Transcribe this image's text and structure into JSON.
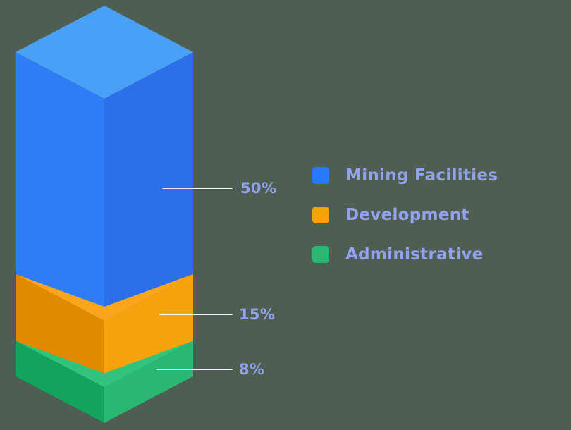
{
  "background": "#4e5e52",
  "text_color": "#93a2ee",
  "line_color": "#f2f4f6",
  "chart_data": {
    "type": "bar",
    "variant": "3d-isometric-stacked-column",
    "title": "",
    "unit": "%",
    "legend_position": "right",
    "segments": [
      {
        "label": "Mining Facilities",
        "value": 50,
        "pct": "50%",
        "color": "#2979ff",
        "color_top": "#4aa0f4",
        "color_left": "#2f7df6",
        "color_right": "#2b70e8"
      },
      {
        "label": "Development",
        "value": 15,
        "pct": "15%",
        "color": "#f6a30a",
        "color_top": "#fba51c",
        "color_left": "#e18a00",
        "color_right": "#f7a30d"
      },
      {
        "label": "Administrative",
        "value": 8,
        "pct": "8%",
        "color": "#2ab771",
        "color_top": "#2fc37c",
        "color_left": "#12a35c",
        "color_right": "#2ab771"
      }
    ]
  }
}
